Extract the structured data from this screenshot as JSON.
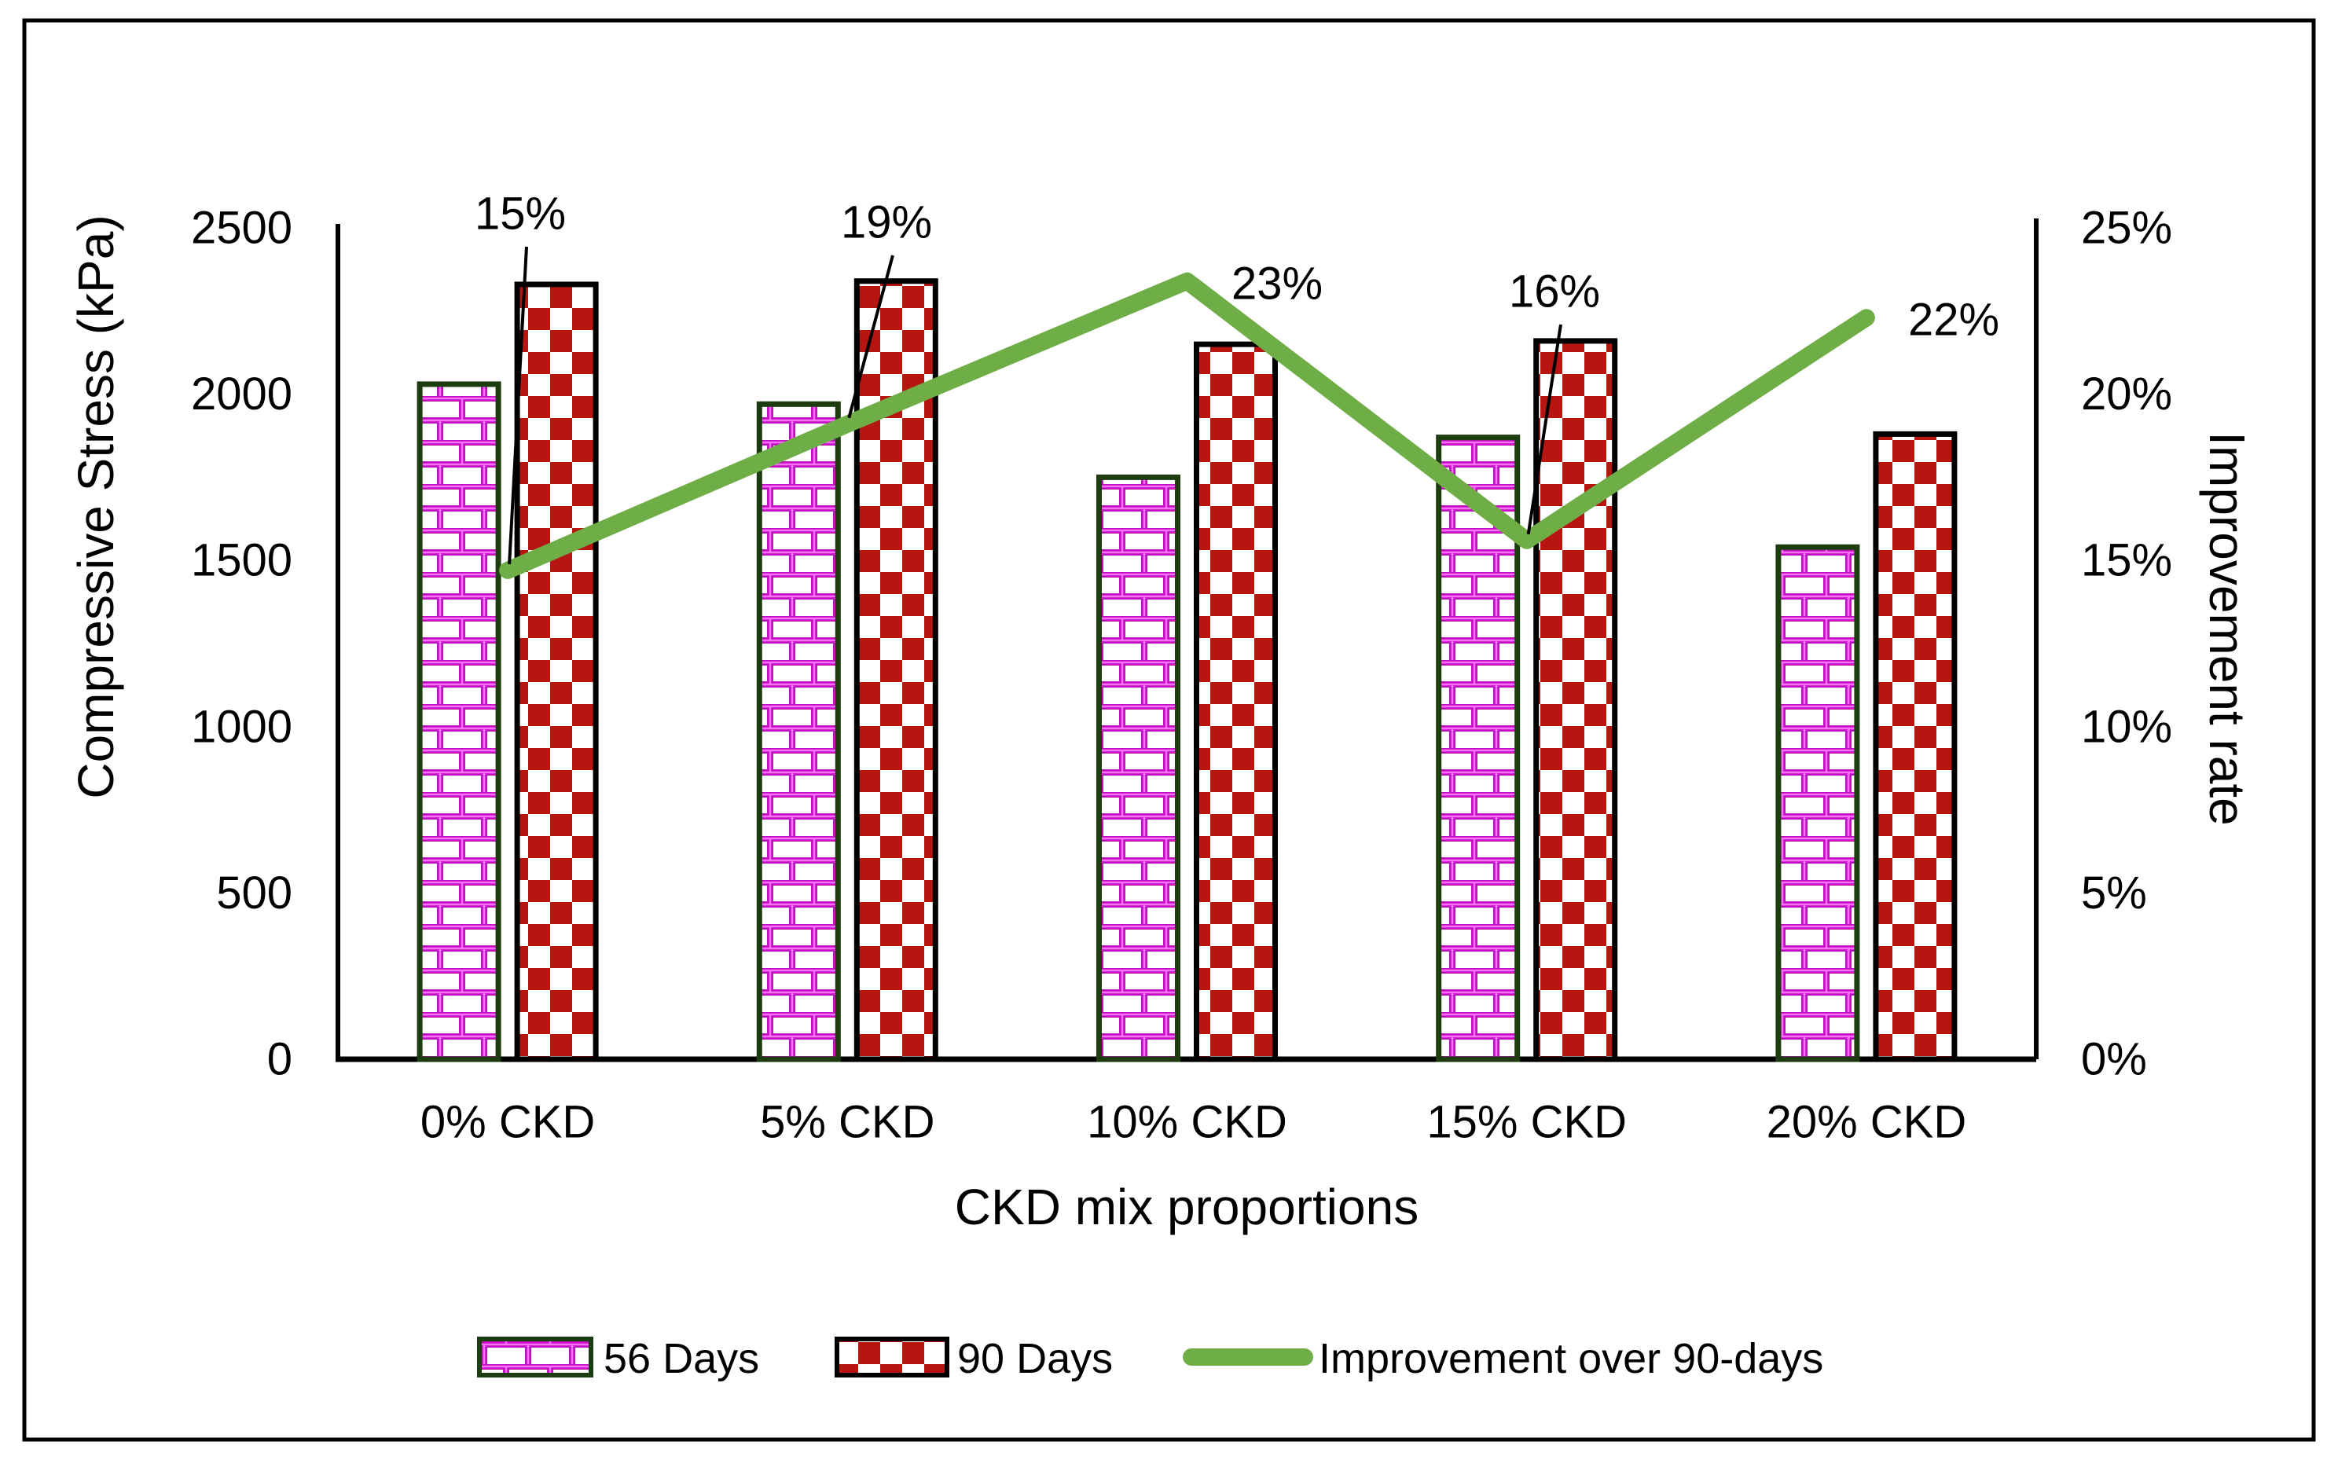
{
  "figure": {
    "left_axis_title": "Compressive Stress (kPa)",
    "right_axis_title": "Improvement rate",
    "x_axis_title": "CKD mix proportions"
  },
  "legend": {
    "items": [
      {
        "label": "56 Days",
        "swatch": "brick-pink"
      },
      {
        "label": "90 Days",
        "swatch": "checker-red"
      },
      {
        "label": "Improvement over 90-days",
        "swatch": "green-line"
      }
    ]
  },
  "colors": {
    "text": "#000000",
    "frame": "#000000",
    "axis": "#000000",
    "brick_line": "#c211c2",
    "brick_highlight": "#ff6eff",
    "brick_bar_border": "#1d3c10",
    "checker_red": "#b71511",
    "checker_bar_border": "#000000",
    "line_green": "#6fad47",
    "leader_line": "#000000"
  },
  "chart_data": {
    "type": "bar",
    "subtype": "combo-bar-line",
    "title": "",
    "categories": [
      "0% CKD",
      "5% CKD",
      "10% CKD",
      "15% CKD",
      "20% CKD"
    ],
    "series": [
      {
        "name": "56 Days",
        "type": "bar",
        "pattern": "brick",
        "values": [
          2030,
          1970,
          1750,
          1870,
          1540
        ]
      },
      {
        "name": "90 Days",
        "type": "bar",
        "pattern": "checker",
        "values": [
          2330,
          2340,
          2150,
          2160,
          1880
        ]
      },
      {
        "name": "Improvement over 90-days",
        "type": "line",
        "axis": "right",
        "values": [
          15,
          19,
          23,
          16,
          22
        ],
        "labels": [
          "15%",
          "19%",
          "23%",
          "16%",
          "22%"
        ],
        "plotted_values": [
          14.7,
          19.1,
          23.4,
          15.6,
          22.3
        ]
      }
    ],
    "left_axis": {
      "title": "Compressive Stress (kPa)",
      "min": 0,
      "max": 2500,
      "ticks": [
        "2500",
        "2000",
        "1500",
        "1000",
        "500",
        "0"
      ]
    },
    "right_axis": {
      "title": "Improvement rate",
      "min": 0,
      "max": 25,
      "ticks": [
        "25%",
        "20%",
        "15%",
        "10%",
        "5%",
        "0%"
      ]
    },
    "x_axis": {
      "title": "CKD mix proportions"
    },
    "grid": false,
    "legend_position": "bottom"
  }
}
